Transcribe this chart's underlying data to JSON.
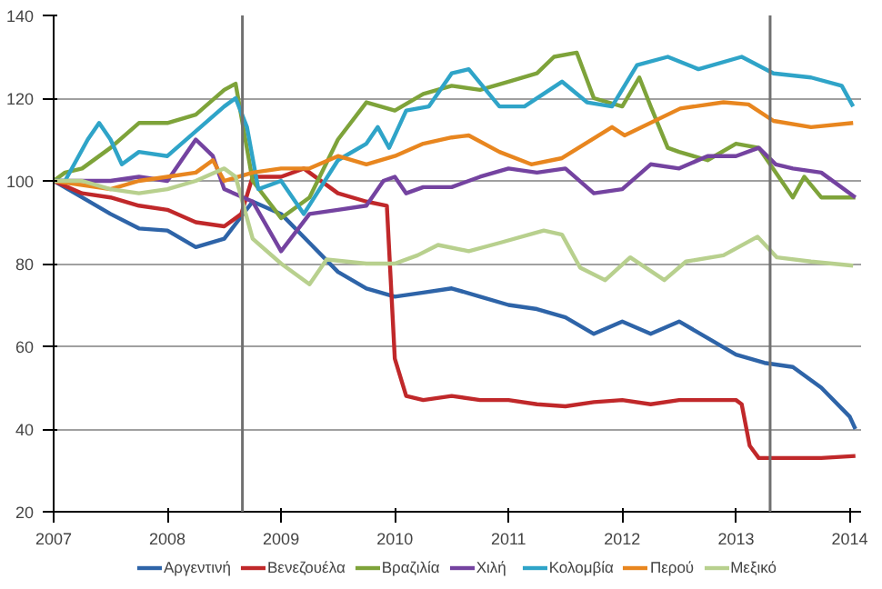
{
  "chart_data": {
    "type": "line",
    "xlim": [
      2007,
      2014.1
    ],
    "xticks": [
      2007,
      2008,
      2009,
      2010,
      2011,
      2012,
      2013,
      2014
    ],
    "ylim": [
      20,
      140
    ],
    "yticks": [
      20,
      40,
      60,
      80,
      100,
      120,
      140
    ],
    "grid": "y",
    "legend": "bottom",
    "marker": "none",
    "line_style": "solid",
    "ref_lines": [
      {
        "axis": "x",
        "value": 2008.66,
        "label": null,
        "color": "#707070"
      },
      {
        "axis": "x",
        "value": 2013.3,
        "label": null,
        "color": "#707070"
      }
    ],
    "series": [
      {
        "name": "Αργεντινή",
        "color": "#2e64a8",
        "x": [
          2007,
          2007.25,
          2007.5,
          2007.75,
          2008,
          2008.25,
          2008.5,
          2008.75,
          2009,
          2009.25,
          2009.5,
          2009.75,
          2010,
          2010.25,
          2010.5,
          2010.75,
          2011,
          2011.25,
          2011.5,
          2011.75,
          2012,
          2012.25,
          2012.5,
          2012.75,
          2013,
          2013.25,
          2013.5,
          2013.75,
          2014,
          2014.05
        ],
        "values": [
          100,
          96,
          92,
          88.5,
          88,
          84,
          86,
          95,
          92,
          85,
          78,
          74,
          72,
          73,
          74,
          72,
          70,
          69,
          67,
          63,
          66,
          63,
          66,
          62,
          58,
          56,
          55,
          50,
          43,
          40
        ]
      },
      {
        "name": "Βενεζουέλα",
        "color": "#c0282a",
        "x": [
          2007,
          2007.25,
          2007.5,
          2007.75,
          2008,
          2008.25,
          2008.5,
          2008.65,
          2008.75,
          2009,
          2009.2,
          2009.5,
          2009.75,
          2009.93,
          2010,
          2010.1,
          2010.25,
          2010.5,
          2010.75,
          2011,
          2011.25,
          2011.5,
          2011.75,
          2012,
          2012.25,
          2012.5,
          2012.75,
          2013,
          2013.05,
          2013.12,
          2013.2,
          2013.5,
          2013.75,
          2014.05
        ],
        "values": [
          100,
          97,
          96,
          94,
          93,
          90,
          89,
          92,
          101,
          101,
          103,
          97,
          95,
          94,
          57,
          48,
          47,
          48,
          47,
          47,
          46,
          45.5,
          46.5,
          47,
          46,
          47,
          47,
          47,
          46,
          36,
          33,
          33,
          33,
          33.5
        ]
      },
      {
        "name": "Βραζιλία",
        "color": "#7ea33a",
        "x": [
          2007,
          2007.1,
          2007.25,
          2007.5,
          2007.75,
          2008,
          2008.25,
          2008.5,
          2008.6,
          2008.75,
          2009,
          2009.25,
          2009.5,
          2009.75,
          2010,
          2010.25,
          2010.5,
          2010.75,
          2011,
          2011.25,
          2011.4,
          2011.6,
          2011.75,
          2012,
          2012.15,
          2012.25,
          2012.4,
          2012.5,
          2012.75,
          2013,
          2013.2,
          2013.5,
          2013.6,
          2013.75,
          2014.05
        ],
        "values": [
          100,
          102,
          103,
          108,
          114,
          114,
          116,
          122,
          123.5,
          100,
          91,
          96,
          110,
          119,
          117,
          121,
          123,
          122,
          124,
          126,
          130,
          131,
          120,
          118,
          125,
          118,
          108,
          107,
          105,
          109,
          108,
          96,
          101,
          96,
          96
        ]
      },
      {
        "name": "Χιλή",
        "color": "#7443a0",
        "x": [
          2007,
          2007.5,
          2007.75,
          2008,
          2008.25,
          2008.4,
          2008.5,
          2008.75,
          2009,
          2009.25,
          2009.5,
          2009.75,
          2009.9,
          2010,
          2010.1,
          2010.25,
          2010.5,
          2010.75,
          2011,
          2011.25,
          2011.5,
          2011.75,
          2012,
          2012.25,
          2012.5,
          2012.75,
          2013,
          2013.2,
          2013.35,
          2013.5,
          2013.75,
          2014.05
        ],
        "values": [
          100,
          100,
          101,
          100,
          110,
          106,
          98,
          95,
          83,
          92,
          93,
          94,
          100,
          101,
          97,
          98.5,
          98.5,
          101,
          103,
          102,
          103,
          97,
          98,
          104,
          103,
          106,
          106,
          108,
          104,
          103,
          102,
          96
        ]
      },
      {
        "name": "Κολομβία",
        "color": "#2fa4c8",
        "x": [
          2007,
          2007.1,
          2007.3,
          2007.4,
          2007.5,
          2007.6,
          2007.75,
          2008,
          2008.25,
          2008.5,
          2008.6,
          2008.7,
          2008.8,
          2009,
          2009.2,
          2009.5,
          2009.75,
          2009.85,
          2009.95,
          2010.1,
          2010.3,
          2010.5,
          2010.65,
          2010.92,
          2011.14,
          2011.47,
          2011.69,
          2011.91,
          2012.13,
          2012.4,
          2012.67,
          2013.05,
          2013.33,
          2013.66,
          2013.93,
          2014.03
        ],
        "values": [
          100,
          100,
          110,
          114,
          110,
          104,
          107,
          106,
          112,
          118,
          120,
          113,
          98,
          100,
          92,
          105,
          109,
          113,
          108,
          117,
          118,
          126,
          127,
          118,
          118,
          124,
          119,
          118,
          128,
          130,
          127,
          130,
          126,
          125,
          123,
          118
        ]
      },
      {
        "name": "Περού",
        "color": "#e8861f",
        "x": [
          2007,
          2007.5,
          2007.75,
          2008,
          2008.25,
          2008.4,
          2008.5,
          2008.75,
          2009,
          2009.25,
          2009.5,
          2009.75,
          2010,
          2010.25,
          2010.5,
          2010.65,
          2010.92,
          2011.2,
          2011.47,
          2011.91,
          2012.02,
          2012.51,
          2012.89,
          2013.11,
          2013.33,
          2013.66,
          2014.03
        ],
        "values": [
          100,
          98,
          100,
          101,
          102,
          105,
          100,
          102,
          103,
          103,
          106,
          104,
          106,
          109,
          110.5,
          111,
          107,
          104,
          105.5,
          113,
          111,
          117.5,
          119,
          118.5,
          114.5,
          113,
          114
        ]
      },
      {
        "name": "Μεξικό",
        "color": "#b8d08e",
        "x": [
          2007,
          2007.25,
          2007.5,
          2007.75,
          2008,
          2008.25,
          2008.5,
          2008.6,
          2008.75,
          2009,
          2009.25,
          2009.4,
          2009.75,
          2010,
          2010.2,
          2010.38,
          2010.65,
          2010.92,
          2011.31,
          2011.47,
          2011.63,
          2011.85,
          2012.07,
          2012.37,
          2012.56,
          2012.89,
          2013.19,
          2013.36,
          2013.66,
          2014.03
        ],
        "values": [
          100,
          100,
          98,
          97,
          98,
          100,
          103,
          101,
          86,
          80,
          75,
          81,
          80,
          80,
          82,
          84.5,
          83,
          85,
          88,
          87,
          79,
          76,
          81.5,
          76,
          80.5,
          82,
          86.5,
          81.5,
          80.5,
          79.5
        ]
      }
    ]
  }
}
